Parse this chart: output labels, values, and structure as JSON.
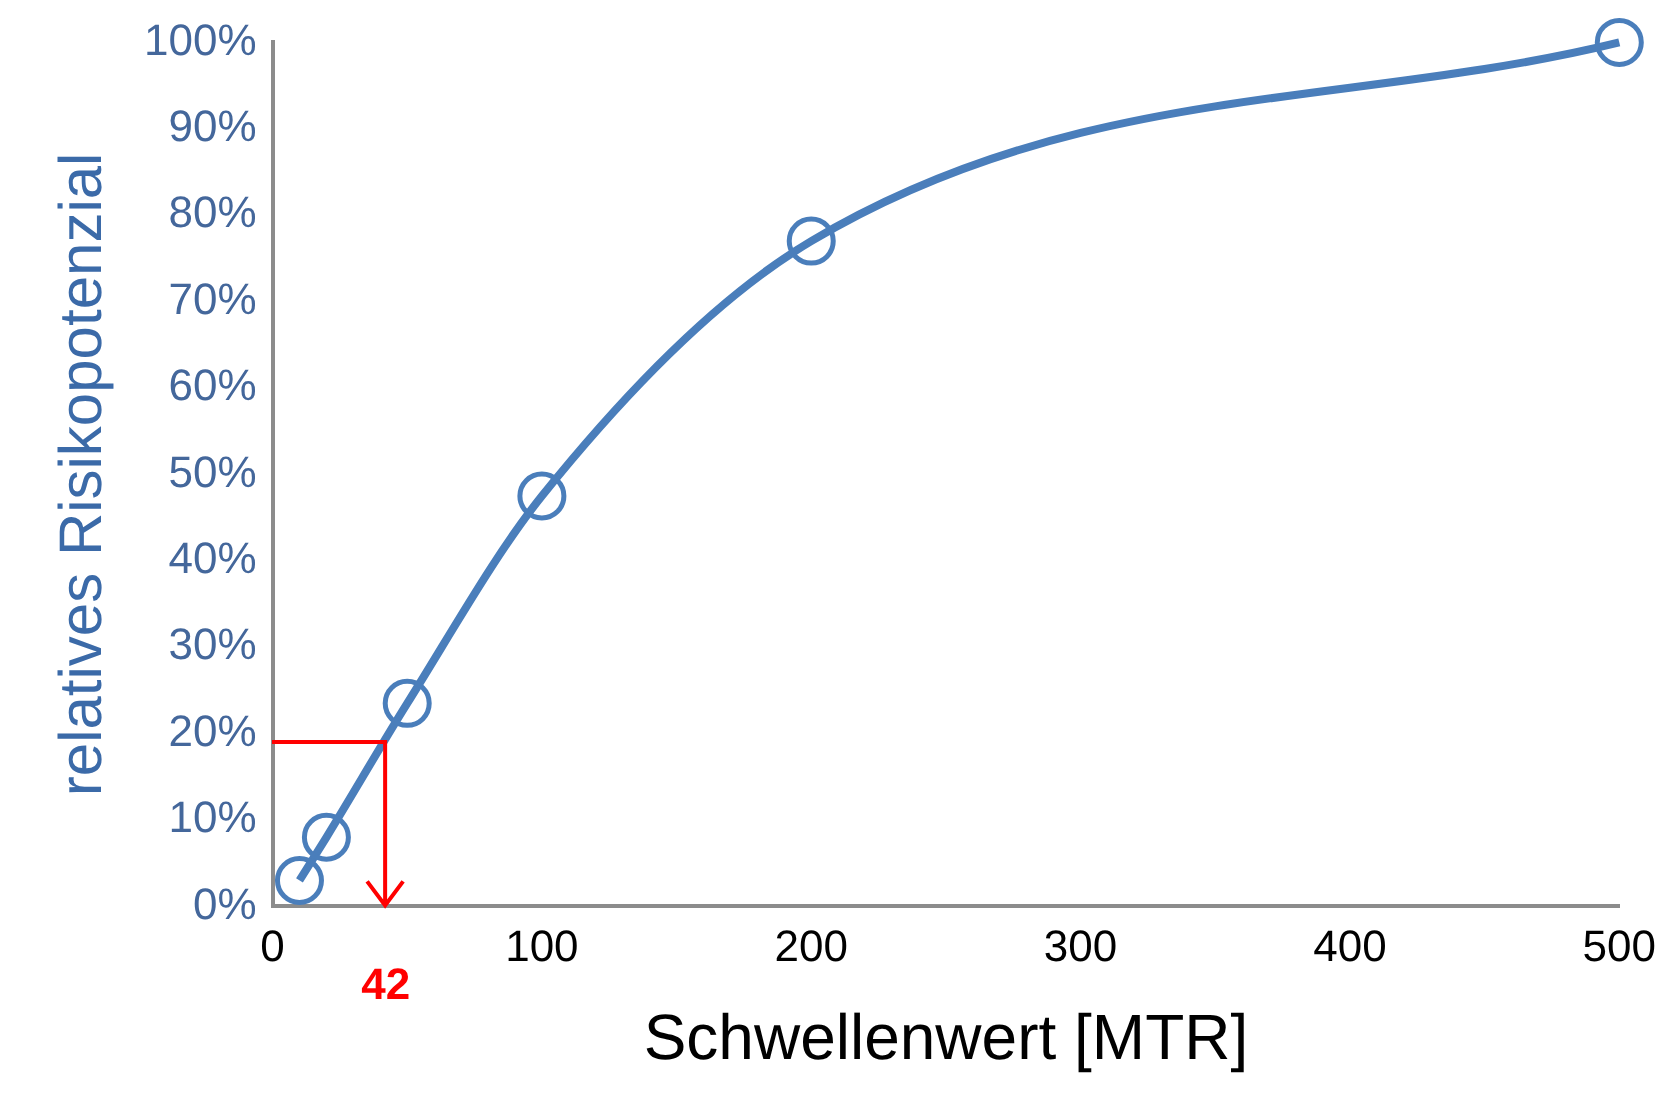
{
  "chart_data": {
    "type": "line",
    "xlabel": "Schwellenwert [MTR]",
    "ylabel": "relatives Risikopotenzial",
    "xlim": [
      0,
      500
    ],
    "xticks": [
      0,
      100,
      200,
      300,
      400,
      500
    ],
    "ylim": [
      0,
      100
    ],
    "yticks": [
      {
        "value": 0,
        "label": "0%"
      },
      {
        "value": 10,
        "label": "10%"
      },
      {
        "value": 20,
        "label": "20%"
      },
      {
        "value": 30,
        "label": "30%"
      },
      {
        "value": 40,
        "label": "40%"
      },
      {
        "value": 50,
        "label": "50%"
      },
      {
        "value": 60,
        "label": "60%"
      },
      {
        "value": 70,
        "label": "70%"
      },
      {
        "value": 80,
        "label": "80%"
      },
      {
        "value": 90,
        "label": "90%"
      },
      {
        "value": 100,
        "label": "100%"
      }
    ],
    "marker": "circle",
    "grid": false,
    "legend": false,
    "series": [
      {
        "color": "#4a7ebb",
        "x": [
          10,
          20,
          50,
          100,
          200,
          500
        ],
        "values": [
          3,
          8,
          23.5,
          47.5,
          77,
          100
        ]
      }
    ],
    "ref_lines": [
      {
        "axis": "x",
        "value": 42,
        "label": "42",
        "color": "#ff0000"
      }
    ]
  }
}
